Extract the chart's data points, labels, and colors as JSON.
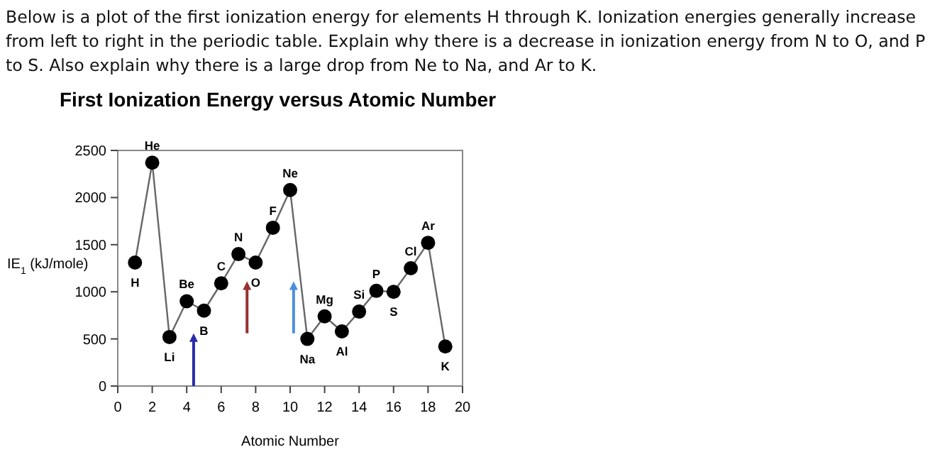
{
  "chart_data": {
    "type": "line",
    "title": "First Ionization Energy versus Atomic Number",
    "xlabel": "Atomic Number",
    "ylabel": "IE$_{1}$ (kJ/mole)",
    "x": [
      1,
      2,
      3,
      4,
      5,
      6,
      7,
      8,
      9,
      10,
      11,
      12,
      13,
      14,
      15,
      16,
      17,
      18,
      19
    ],
    "series": [
      {
        "color": "#000000",
        "values": [
          1310,
          2370,
          520,
          900,
          800,
          1090,
          1400,
          1310,
          1680,
          2080,
          500,
          740,
          580,
          790,
          1010,
          1000,
          1250,
          1520,
          420
        ]
      }
    ],
    "xlim": [
      0,
      20
    ],
    "xticks": [
      0,
      2,
      4,
      6,
      8,
      10,
      12,
      14,
      16,
      18,
      20
    ],
    "ylim": [
      0,
      2500
    ],
    "yticks": [
      0,
      500,
      1000,
      1500,
      2000,
      2500
    ],
    "marker": "circle",
    "annotations": [
      "Below is a plot of the first ionization energy for elements H through K. Ionization energies generally increase from left to right in the periodic table. Explain why there is a decrease in ionization energy from N to O, and P to S. Also explain why there is a large drop from Ne to Na, and Ar to K.",
      {
        "text": "H",
        "x": 1,
        "y": 1310
      },
      {
        "text": "He",
        "x": 2,
        "y": 2370
      },
      {
        "text": "Li",
        "x": 3,
        "y": 520
      },
      {
        "text": "Be",
        "x": 4,
        "y": 900
      },
      {
        "text": "B",
        "x": 5,
        "y": 800
      },
      {
        "text": "C",
        "x": 6,
        "y": 1090
      },
      {
        "text": "N",
        "x": 7,
        "y": 1400
      },
      {
        "text": "O",
        "x": 8,
        "y": 1310
      },
      {
        "text": "F",
        "x": 9,
        "y": 1680
      },
      {
        "text": "Ne",
        "x": 10,
        "y": 2080
      },
      {
        "text": "Na",
        "x": 11,
        "y": 500
      },
      {
        "text": "Mg",
        "x": 12,
        "y": 740
      },
      {
        "text": "Al",
        "x": 13,
        "y": 580
      },
      {
        "text": "Si",
        "x": 14,
        "y": 790
      },
      {
        "text": "P",
        "x": 15,
        "y": 1010
      },
      {
        "text": "S",
        "x": 16,
        "y": 1000
      },
      {
        "text": "Cl",
        "x": 17,
        "y": 1250
      },
      {
        "text": "Ar",
        "x": 18,
        "y": 1520
      },
      {
        "text": "K",
        "x": 19,
        "y": 420
      }
    ]
  }
}
